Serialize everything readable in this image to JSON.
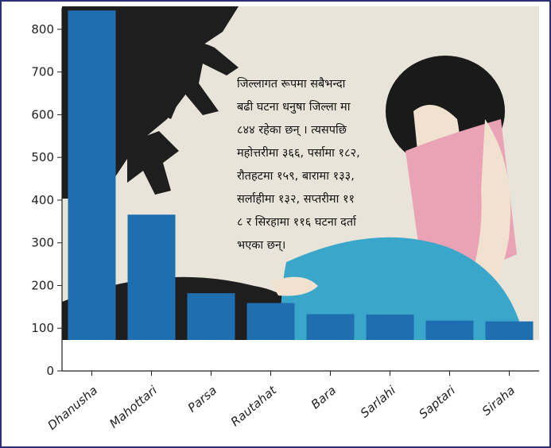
{
  "colors": {
    "bar": "#1f6fb0",
    "frame": "#2b2f7a",
    "axis": "#222222",
    "illustration_dark": "#1e1e1e",
    "illustration_light": "#e9e4da",
    "skin": "#f0e2cf",
    "shirt": "#e9a3b5",
    "skirt": "#3aa6c9"
  },
  "chart_data": {
    "type": "bar",
    "categories": [
      "Dhanusha",
      "Mahottari",
      "Parsa",
      "Rautahat",
      "Bara",
      "Sarlahi",
      "Saptari",
      "Siraha"
    ],
    "values": [
      844,
      366,
      182,
      159,
      133,
      132,
      118,
      116
    ],
    "ylim": [
      0,
      850
    ],
    "yticks": [
      0,
      100,
      200,
      300,
      400,
      500,
      600,
      700,
      800
    ],
    "tick_label_rotation": "-45 degrees (x labels)",
    "grid": false,
    "background": "illustration of a distressed woman with shadow hands",
    "annotation": "जिल्लागत रूपमा सबैभन्दा\nबढी घटना धनुषा जिल्ला मा\n८४४ रहेका छन् । त्यसपछि\nमहोत्तरीमा ३६६, पर्सामा १८२,\nरौतहटमा १५९, बारामा १३३,\nसर्लाहीमा १३२, सप्तरीमा ११\n८ र सिरहामा ११६ घटना दर्ता\nभएका छन्।"
  }
}
